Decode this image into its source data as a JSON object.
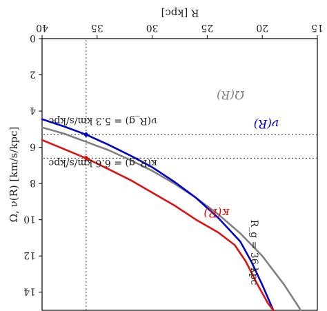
{
  "chart_data": {
    "type": "line",
    "orientation": "rotated-180",
    "title": "",
    "xlabel": "R [kpc]",
    "ylabel": "Ω, ν(R) [km/s/kpc]",
    "xlim": [
      15,
      40
    ],
    "ylim": [
      0,
      15
    ],
    "xticks": [
      15,
      20,
      25,
      30,
      35,
      40
    ],
    "yticks": [
      0,
      2,
      4,
      6,
      8,
      10,
      12,
      14
    ],
    "grid": false,
    "series": [
      {
        "name": "Ω(R)",
        "color": "#808080",
        "x": [
          16.5,
          18,
          20,
          22,
          24,
          26,
          28,
          30,
          32,
          34,
          36,
          38,
          40
        ],
        "y": [
          15.0,
          13.6,
          12.0,
          10.75,
          9.7,
          8.8,
          8.0,
          7.3,
          6.7,
          6.15,
          5.7,
          5.25,
          4.9
        ]
      },
      {
        "name": "ν(R)",
        "color": "#0000d0",
        "x": [
          19.0,
          20,
          21,
          22,
          24,
          26,
          28,
          30,
          32,
          34,
          36,
          38,
          40
        ],
        "y": [
          15.0,
          13.6,
          12.3,
          11.2,
          9.9,
          8.8,
          7.9,
          7.1,
          6.45,
          5.85,
          5.3,
          4.85,
          4.45
        ]
      },
      {
        "name": "κ(R)",
        "color": "#e01010",
        "x": [
          19.0,
          19.5,
          20.5,
          21.5,
          22.5,
          24,
          26,
          28,
          30,
          32,
          34,
          36,
          38,
          40
        ],
        "y": [
          15.0,
          14.6,
          13.5,
          12.3,
          11.4,
          10.7,
          10.0,
          9.2,
          8.5,
          7.8,
          7.2,
          6.6,
          6.1,
          5.6
        ]
      }
    ],
    "reference_lines": [
      {
        "type": "vertical",
        "x": 36,
        "label": "R_g = 36 kpc"
      },
      {
        "type": "horizontal",
        "y": 5.3,
        "label": "ν(R_g) = 5.3 km/s/kpc"
      },
      {
        "type": "horizontal",
        "y": 6.6,
        "label": "κ(R_g) = 6.6 km/s/kpc"
      }
    ],
    "markers": [
      {
        "x": 36,
        "y": 5.3,
        "color": "#0000d0"
      },
      {
        "x": 36,
        "y": 6.6,
        "color": "#e01010"
      }
    ]
  }
}
